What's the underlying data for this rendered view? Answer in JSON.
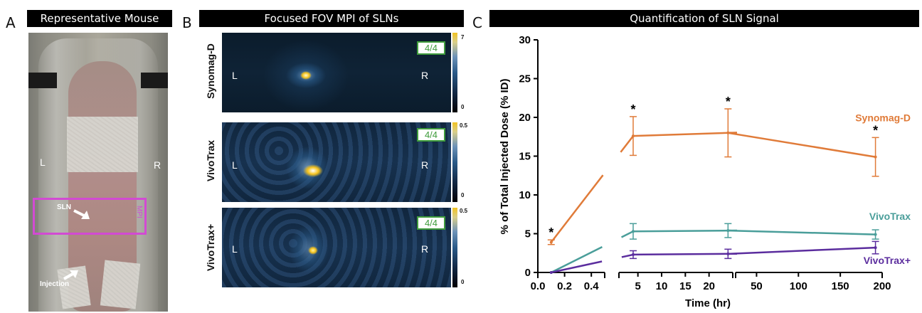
{
  "panels": {
    "a": {
      "letter": "A",
      "title": "Representative Mouse",
      "left_label": "L",
      "right_label": "R",
      "sln_label": "SLN",
      "injection_label": "Injection",
      "box_label": "MPI"
    },
    "b": {
      "letter": "B",
      "title": "Focused FOV MPI of SLNs",
      "rows": [
        {
          "name": "Synomag-D",
          "fraction": "4/4",
          "cbar_max": "7",
          "cbar_min": "0",
          "left": "L",
          "right": "R"
        },
        {
          "name": "VivoTrax",
          "fraction": "4/4",
          "cbar_max": "0.5",
          "cbar_min": "0",
          "left": "L",
          "right": "R"
        },
        {
          "name": "VivoTrax+",
          "fraction": "4/4",
          "cbar_max": "0.5",
          "cbar_min": "0",
          "left": "L",
          "right": "R"
        }
      ]
    },
    "c": {
      "letter": "C",
      "title": "Quantification of SLN Signal"
    }
  },
  "colors": {
    "synomag": "#e07b39",
    "vivotrax": "#4a9e9a",
    "vivotraxplus": "#5b2d9e",
    "frac_border": "#3f9c3c",
    "mpi_box": "#d24ad3"
  },
  "chart_data": {
    "type": "line",
    "xlabel": "Time (hr)",
    "ylabel": "% of Total Injected Dose (% ID)",
    "ylim": [
      0,
      30
    ],
    "yticks": [
      0,
      5,
      10,
      15,
      20,
      25,
      30
    ],
    "x_axis_broken": true,
    "x_segments": [
      {
        "range": [
          0.0,
          0.5
        ],
        "ticks": [
          0.0,
          0.2,
          0.4
        ],
        "tick_labels": [
          "0.0",
          "0.2",
          "0.4"
        ]
      },
      {
        "range": [
          1,
          25
        ],
        "ticks": [
          5,
          10,
          15,
          20
        ],
        "tick_labels": [
          "5",
          "10",
          "15",
          "20"
        ]
      },
      {
        "range": [
          25,
          200
        ],
        "ticks": [
          50,
          100,
          150,
          200
        ],
        "tick_labels": [
          "50",
          "100",
          "150",
          "200"
        ]
      }
    ],
    "series": [
      {
        "name": "Synomag-D",
        "color": "#e07b39",
        "points": [
          {
            "x": 0.1,
            "y": 3.9,
            "err": 0.3,
            "sig": "*"
          },
          {
            "x": 4,
            "y": 17.6,
            "err": 2.5,
            "sig": "*"
          },
          {
            "x": 24,
            "y": 18.0,
            "err": 3.1,
            "sig": "*"
          },
          {
            "x": 192,
            "y": 14.9,
            "err": 2.5,
            "sig": "*"
          }
        ]
      },
      {
        "name": "VivoTrax",
        "color": "#4a9e9a",
        "points": [
          {
            "x": 0.1,
            "y": 0.0,
            "err": 0
          },
          {
            "x": 4,
            "y": 5.3,
            "err": 1.0
          },
          {
            "x": 24,
            "y": 5.4,
            "err": 0.9
          },
          {
            "x": 192,
            "y": 4.9,
            "err": 0.6
          }
        ]
      },
      {
        "name": "VivoTrax+",
        "color": "#5b2d9e",
        "points": [
          {
            "x": 0.1,
            "y": 0.0,
            "err": 0
          },
          {
            "x": 4,
            "y": 2.3,
            "err": 0.5
          },
          {
            "x": 24,
            "y": 2.4,
            "err": 0.6
          },
          {
            "x": 192,
            "y": 3.2,
            "err": 0.8
          }
        ]
      }
    ]
  }
}
